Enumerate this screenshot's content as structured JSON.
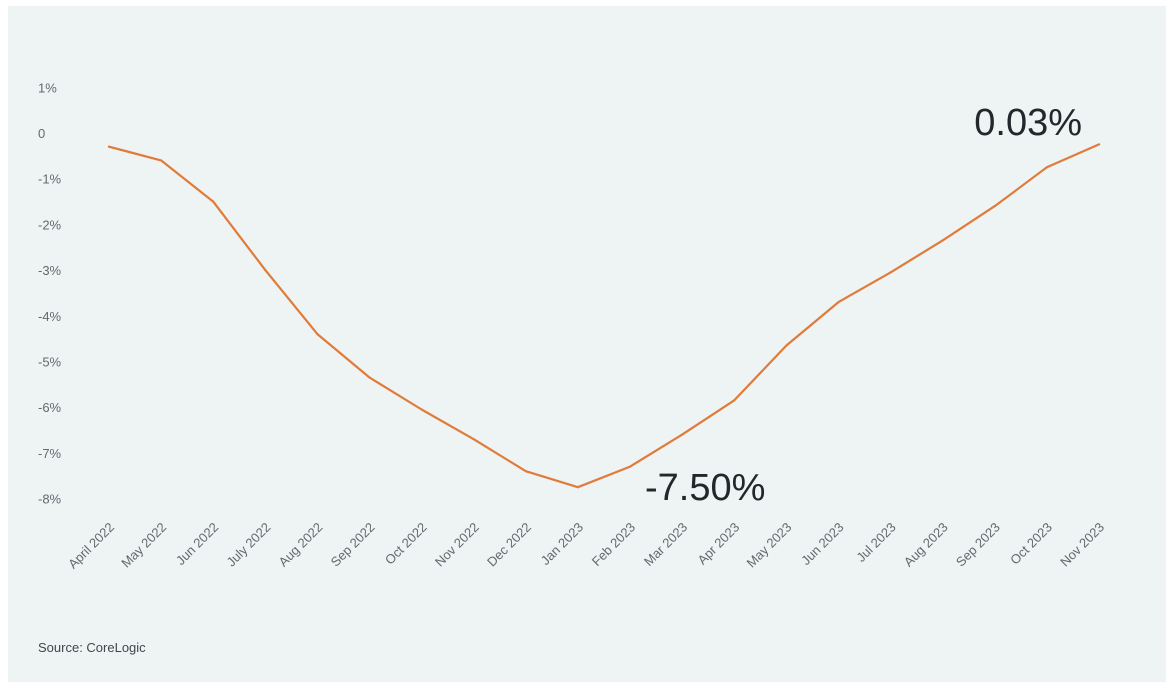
{
  "chart_data": {
    "type": "line",
    "title": "",
    "xlabel": "",
    "ylabel": "",
    "categories": [
      "April 2022",
      "May 2022",
      "Jun 2022",
      "July 2022",
      "Aug 2022",
      "Sep 2022",
      "Oct 2022",
      "Nov 2022",
      "Dec 2022",
      "Jan 2023",
      "Feb 2023",
      "Mar 2023",
      "Apr 2023",
      "May 2023",
      "Jun 2023",
      "Jul 2023",
      "Aug 2023",
      "Sep 2023",
      "Oct 2023",
      "Nov 2023"
    ],
    "series": [
      {
        "values": [
          -0.3,
          -0.6,
          -1.5,
          -3.0,
          -4.4,
          -5.35,
          -6.05,
          -6.7,
          -7.4,
          -7.75,
          -7.3,
          -6.6,
          -5.85,
          -4.65,
          -3.7,
          -3.05,
          -2.35,
          -1.6,
          -0.75,
          -0.25
        ],
        "color": "#e07b39"
      }
    ],
    "y_ticks": [
      "1%",
      "0",
      "-1%",
      "-2%",
      "-3%",
      "-4%",
      "-5%",
      "-6%",
      "-7%",
      "-8%"
    ],
    "ylim": [
      -8.5,
      1.5
    ],
    "grid": false,
    "annotations": [
      "0.03%",
      "-7.50%"
    ],
    "source": "Source: CoreLogic"
  }
}
